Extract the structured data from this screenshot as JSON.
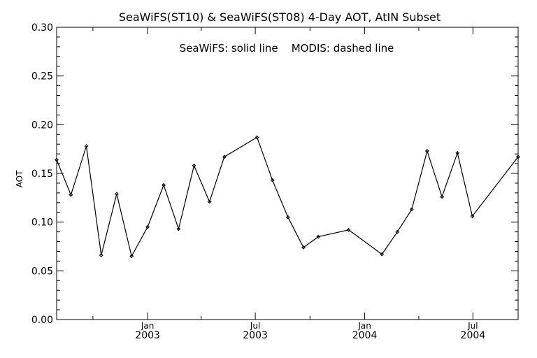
{
  "chart_data": {
    "type": "line",
    "title": "SeaWiFS(ST10) & SeaWiFS(ST08) 4-Day AOT, AtIN Subset",
    "annotation": "SeaWiFS: solid line    MODIS: dashed line",
    "ylabel": "AOT",
    "xlabel": "",
    "ylim": [
      0.0,
      0.3
    ],
    "y_ticks": [
      "0.00",
      "0.05",
      "0.10",
      "0.15",
      "0.20",
      "0.25",
      "0.30"
    ],
    "y_tick_values": [
      0.0,
      0.05,
      0.1,
      0.15,
      0.2,
      0.25,
      0.3
    ],
    "xlim": [
      "2002-08-01",
      "2004-09-15"
    ],
    "x_major_ticks": [
      {
        "date": "2003-01-01",
        "month": "Jan",
        "year": "2003"
      },
      {
        "date": "2003-07-01",
        "month": "Jul",
        "year": "2003"
      },
      {
        "date": "2004-01-01",
        "month": "Jan",
        "year": "2004"
      },
      {
        "date": "2004-07-01",
        "month": "Jul",
        "year": "2004"
      }
    ],
    "x_minor_ticks": [
      "2002-10-01",
      "2003-04-01",
      "2003-10-01",
      "2004-04-01"
    ],
    "grid": false,
    "series": [
      {
        "style": "solid",
        "marker": "diamond",
        "color": "#000000",
        "points": [
          {
            "x": "2002-08-01",
            "y": 0.164
          },
          {
            "x": "2002-08-25",
            "y": 0.128
          },
          {
            "x": "2002-09-20",
            "y": 0.178
          },
          {
            "x": "2002-10-15",
            "y": 0.066
          },
          {
            "x": "2002-11-10",
            "y": 0.129
          },
          {
            "x": "2002-12-05",
            "y": 0.065
          },
          {
            "x": "2003-01-01",
            "y": 0.095
          },
          {
            "x": "2003-01-28",
            "y": 0.138
          },
          {
            "x": "2003-02-22",
            "y": 0.093
          },
          {
            "x": "2003-03-20",
            "y": 0.158
          },
          {
            "x": "2003-04-15",
            "y": 0.121
          },
          {
            "x": "2003-05-10",
            "y": 0.167
          },
          {
            "x": "2003-07-04",
            "y": 0.187
          },
          {
            "x": "2003-07-30",
            "y": 0.143
          },
          {
            "x": "2003-08-25",
            "y": 0.105
          },
          {
            "x": "2003-09-20",
            "y": 0.074
          },
          {
            "x": "2003-10-15",
            "y": 0.085
          },
          {
            "x": "2003-12-05",
            "y": 0.092
          },
          {
            "x": "2004-01-30",
            "y": 0.067
          },
          {
            "x": "2004-02-25",
            "y": 0.09
          },
          {
            "x": "2004-03-20",
            "y": 0.113
          },
          {
            "x": "2004-04-15",
            "y": 0.173
          },
          {
            "x": "2004-05-10",
            "y": 0.126
          },
          {
            "x": "2004-06-05",
            "y": 0.171
          },
          {
            "x": "2004-06-30",
            "y": 0.106
          },
          {
            "x": "2004-09-15",
            "y": 0.167
          }
        ]
      }
    ]
  }
}
